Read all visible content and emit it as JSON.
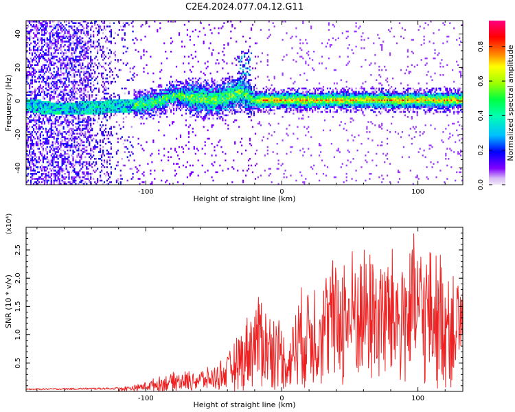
{
  "title": "C2E4.2024.077.04.12.G11",
  "chart_data": [
    {
      "type": "heatmap",
      "xlabel": "Height of straight line (km)",
      "ylabel": "Frequency (Hz)",
      "xlim": [
        -188,
        133
      ],
      "ylim": [
        -50,
        48
      ],
      "xticks": [
        -100,
        0,
        100
      ],
      "xtick_labels": [
        "-100",
        "0",
        "100"
      ],
      "yticks": [
        -40,
        -20,
        0,
        20,
        40
      ],
      "ytick_labels": [
        "-40",
        "-20",
        "0",
        "20",
        "40"
      ],
      "colorbar": {
        "label": "Normalized spectral amplitude",
        "range": [
          0.0,
          0.95
        ],
        "ticks": [
          0.0,
          0.2,
          0.4,
          0.6,
          0.8
        ],
        "tick_labels": [
          "0.0",
          "0.2",
          "0.4",
          "0.6",
          "0.8"
        ],
        "colors": [
          "#f0e6f8",
          "#8000ff",
          "#0000ff",
          "#00bfff",
          "#00ff40",
          "#a0ff00",
          "#ffff00",
          "#ff8000",
          "#ff0000",
          "#ff0080"
        ]
      },
      "ridge": {
        "x": [
          -185,
          -170,
          -150,
          -130,
          -110,
          -100,
          -90,
          -80,
          -70,
          -60,
          -50,
          -40,
          -30,
          -22,
          -10,
          0,
          20,
          40,
          60,
          80,
          100,
          120,
          133
        ],
        "y": [
          -3,
          -5,
          -5,
          -4,
          -3,
          -2,
          0,
          3,
          2,
          1,
          0,
          2,
          5,
          0,
          0,
          0,
          0,
          0,
          0,
          0,
          0,
          0,
          0
        ]
      }
    },
    {
      "type": "line",
      "xlabel": "Height of straight line (km)",
      "ylabel": "SNR (10 * v/v)",
      "multiplier": "(x10⁴)",
      "color": "#ee2222",
      "xlim": [
        -188,
        133
      ],
      "ylim": [
        0,
        2.9
      ],
      "xticks": [
        -100,
        0,
        100
      ],
      "xtick_labels": [
        "-100",
        "0",
        "100"
      ],
      "yticks": [
        0.5,
        1.0,
        1.5,
        2.0,
        2.5
      ],
      "ytick_labels": [
        "0.5",
        "1.0",
        "1.5",
        "2.0",
        "2.5"
      ],
      "envelope": {
        "x": [
          -188,
          -120,
          -105,
          -95,
          -80,
          -60,
          -50,
          -40,
          -30,
          -20,
          -15,
          -10,
          0,
          5,
          10,
          20,
          30,
          40,
          50,
          60,
          70,
          80,
          90,
          100,
          110,
          120,
          133
        ],
        "y": [
          0.05,
          0.07,
          0.12,
          0.2,
          0.3,
          0.35,
          0.4,
          0.6,
          1.0,
          1.5,
          1.7,
          1.3,
          1.2,
          0.7,
          1.5,
          1.8,
          2.0,
          2.2,
          2.3,
          2.4,
          2.4,
          2.3,
          2.4,
          2.5,
          2.3,
          2.2,
          2.0
        ]
      }
    }
  ]
}
